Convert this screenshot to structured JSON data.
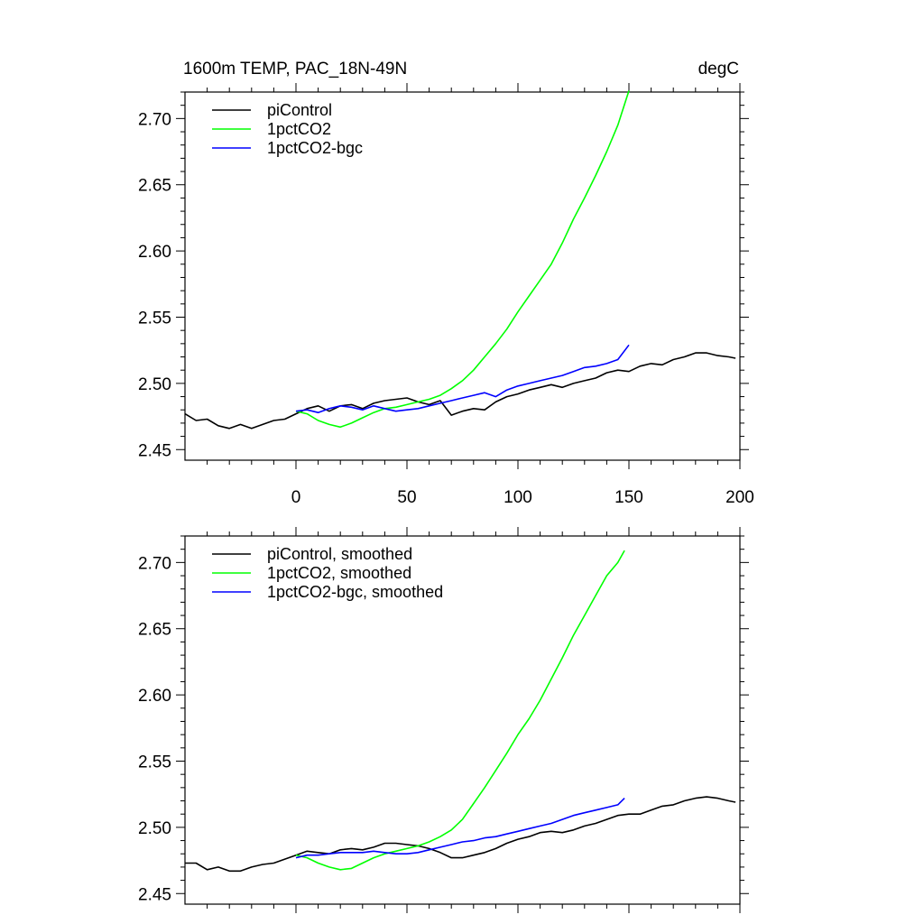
{
  "chart_data": [
    {
      "type": "line",
      "title": "1600m TEMP, PAC_18N-49N",
      "units": "degC",
      "xlabel": "",
      "ylabel": "",
      "xlim": [
        -50,
        200
      ],
      "ylim": [
        2.442,
        2.72
      ],
      "x_ticks": [
        "0",
        "50",
        "100",
        "150",
        "200"
      ],
      "y_ticks": [
        "2.45",
        "2.50",
        "2.55",
        "2.60",
        "2.65",
        "2.70"
      ],
      "legend_position": "top-left",
      "series": [
        {
          "name": "piControl",
          "color": "#000000",
          "x": [
            -50,
            -45,
            -40,
            -35,
            -30,
            -25,
            -20,
            -15,
            -10,
            -5,
            0,
            5,
            10,
            15,
            20,
            25,
            30,
            35,
            40,
            45,
            50,
            55,
            60,
            65,
            70,
            75,
            80,
            85,
            90,
            95,
            100,
            105,
            110,
            115,
            120,
            125,
            130,
            135,
            140,
            145,
            150,
            155,
            160,
            165,
            170,
            175,
            180,
            185,
            190,
            195,
            198
          ],
          "y": [
            2.477,
            2.472,
            2.473,
            2.468,
            2.466,
            2.469,
            2.466,
            2.469,
            2.472,
            2.473,
            2.477,
            2.481,
            2.483,
            2.479,
            2.483,
            2.484,
            2.481,
            2.485,
            2.487,
            2.488,
            2.489,
            2.486,
            2.484,
            2.487,
            2.476,
            2.479,
            2.481,
            2.48,
            2.486,
            2.49,
            2.492,
            2.495,
            2.497,
            2.499,
            2.497,
            2.5,
            2.502,
            2.504,
            2.508,
            2.51,
            2.509,
            2.513,
            2.515,
            2.514,
            2.518,
            2.52,
            2.523,
            2.523,
            2.521,
            2.52,
            2.519
          ]
        },
        {
          "name": "1pctCO2",
          "color": "#00ff00",
          "x": [
            0,
            5,
            10,
            15,
            20,
            25,
            30,
            35,
            40,
            45,
            50,
            55,
            60,
            65,
            70,
            75,
            80,
            85,
            90,
            95,
            100,
            105,
            110,
            115,
            120,
            125,
            130,
            135,
            140,
            145,
            150
          ],
          "y": [
            2.479,
            2.477,
            2.472,
            2.469,
            2.467,
            2.47,
            2.474,
            2.478,
            2.481,
            2.482,
            2.484,
            2.486,
            2.488,
            2.491,
            2.496,
            2.502,
            2.51,
            2.52,
            2.53,
            2.541,
            2.554,
            2.566,
            2.578,
            2.59,
            2.606,
            2.624,
            2.64,
            2.657,
            2.675,
            2.695,
            2.721
          ]
        },
        {
          "name": "1pctCO2-bgc",
          "color": "#0000ff",
          "x": [
            0,
            5,
            10,
            15,
            20,
            25,
            30,
            35,
            40,
            45,
            50,
            55,
            60,
            65,
            70,
            75,
            80,
            85,
            90,
            95,
            100,
            105,
            110,
            115,
            120,
            125,
            130,
            135,
            140,
            145,
            150
          ],
          "y": [
            2.479,
            2.48,
            2.478,
            2.481,
            2.483,
            2.482,
            2.48,
            2.483,
            2.481,
            2.479,
            2.48,
            2.481,
            2.483,
            2.485,
            2.487,
            2.489,
            2.491,
            2.493,
            2.49,
            2.495,
            2.498,
            2.5,
            2.502,
            2.504,
            2.506,
            2.509,
            2.512,
            2.513,
            2.515,
            2.518,
            2.529
          ]
        }
      ]
    },
    {
      "type": "line",
      "title": "",
      "xlabel": "",
      "ylabel": "",
      "xlim": [
        -50,
        200
      ],
      "ylim": [
        2.442,
        2.72
      ],
      "y_ticks": [
        "2.45",
        "2.50",
        "2.55",
        "2.60",
        "2.65",
        "2.70"
      ],
      "legend_position": "top-left",
      "series": [
        {
          "name": "piControl, smoothed",
          "color": "#000000",
          "x": [
            -50,
            -45,
            -40,
            -35,
            -30,
            -25,
            -20,
            -15,
            -10,
            -5,
            0,
            5,
            10,
            15,
            20,
            25,
            30,
            35,
            40,
            45,
            50,
            55,
            60,
            65,
            70,
            75,
            80,
            85,
            90,
            95,
            100,
            105,
            110,
            115,
            120,
            125,
            130,
            135,
            140,
            145,
            150,
            155,
            160,
            165,
            170,
            175,
            180,
            185,
            190,
            195,
            198
          ],
          "y": [
            2.473,
            2.473,
            2.468,
            2.47,
            2.467,
            2.467,
            2.47,
            2.472,
            2.473,
            2.476,
            2.479,
            2.482,
            2.481,
            2.48,
            2.483,
            2.484,
            2.483,
            2.485,
            2.488,
            2.488,
            2.487,
            2.486,
            2.484,
            2.481,
            2.477,
            2.477,
            2.479,
            2.481,
            2.484,
            2.488,
            2.491,
            2.493,
            2.496,
            2.497,
            2.496,
            2.498,
            2.501,
            2.503,
            2.506,
            2.509,
            2.51,
            2.51,
            2.513,
            2.516,
            2.517,
            2.52,
            2.522,
            2.523,
            2.522,
            2.52,
            2.519
          ]
        },
        {
          "name": "1pctCO2, smoothed",
          "color": "#00ff00",
          "x": [
            0,
            5,
            10,
            15,
            20,
            25,
            30,
            35,
            40,
            45,
            50,
            55,
            60,
            65,
            70,
            75,
            80,
            85,
            90,
            95,
            100,
            105,
            110,
            115,
            120,
            125,
            130,
            135,
            140,
            145,
            148
          ],
          "y": [
            2.479,
            2.477,
            2.473,
            2.47,
            2.468,
            2.469,
            2.473,
            2.477,
            2.48,
            2.482,
            2.484,
            2.486,
            2.489,
            2.493,
            2.498,
            2.506,
            2.518,
            2.53,
            2.543,
            2.556,
            2.57,
            2.582,
            2.596,
            2.612,
            2.628,
            2.645,
            2.66,
            2.675,
            2.69,
            2.7,
            2.709
          ]
        },
        {
          "name": "1pctCO2-bgc, smoothed",
          "color": "#0000ff",
          "x": [
            0,
            5,
            10,
            15,
            20,
            25,
            30,
            35,
            40,
            45,
            50,
            55,
            60,
            65,
            70,
            75,
            80,
            85,
            90,
            95,
            100,
            105,
            110,
            115,
            120,
            125,
            130,
            135,
            140,
            145,
            148
          ],
          "y": [
            2.477,
            2.479,
            2.479,
            2.48,
            2.481,
            2.481,
            2.481,
            2.482,
            2.481,
            2.48,
            2.48,
            2.481,
            2.483,
            2.485,
            2.487,
            2.489,
            2.49,
            2.492,
            2.493,
            2.495,
            2.497,
            2.499,
            2.501,
            2.503,
            2.506,
            2.509,
            2.511,
            2.513,
            2.515,
            2.517,
            2.522
          ]
        }
      ]
    }
  ]
}
